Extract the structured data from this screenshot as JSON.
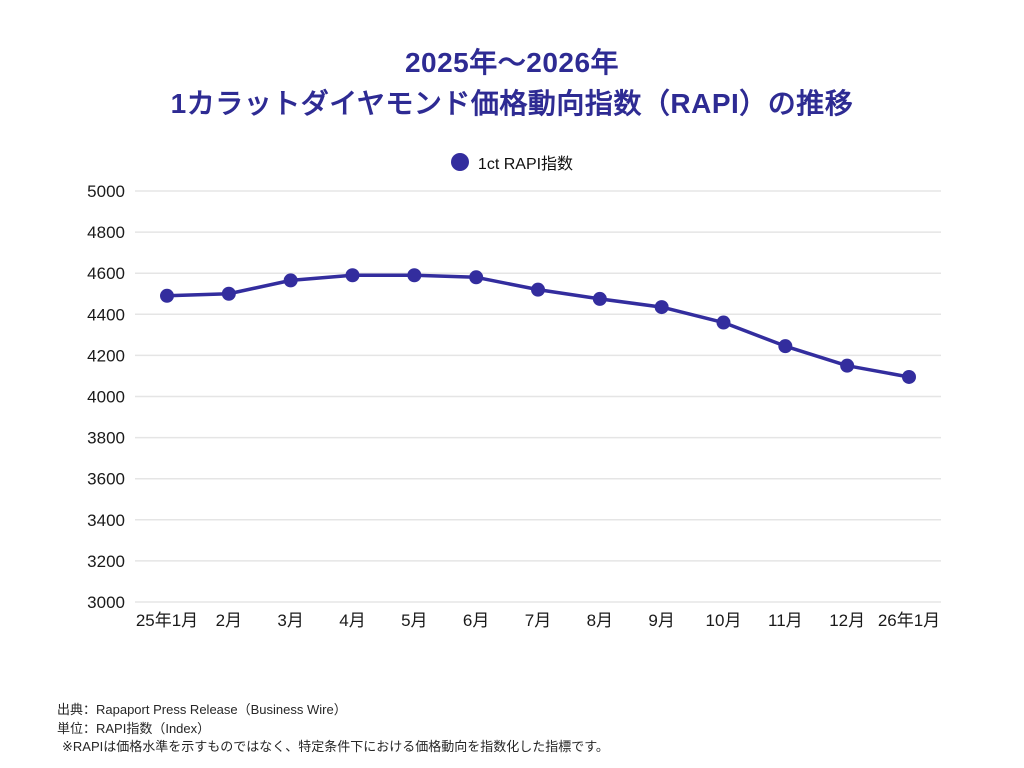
{
  "title": {
    "line1": "2025年〜2026年",
    "line2": "1カラットダイヤモンド価格動向指数（RAPI）の推移"
  },
  "legend": {
    "label": "1ct RAPI指数"
  },
  "chart_data": {
    "type": "line",
    "title": "2025年〜2026年 1カラットダイヤモンド価格動向指数（RAPI）の推移",
    "categories": [
      "25年1月",
      "2月",
      "3月",
      "4月",
      "5月",
      "6月",
      "7月",
      "8月",
      "9月",
      "10月",
      "11月",
      "12月",
      "26年1月"
    ],
    "series": [
      {
        "name": "1ct RAPI指数",
        "values": [
          4490,
          4500,
          4565,
          4590,
          4590,
          4580,
          4520,
          4475,
          4435,
          4360,
          4245,
          4150,
          4095
        ]
      }
    ],
    "xlabel": "",
    "ylabel": "RAPI指数（Index）",
    "ylim": [
      3000,
      5000
    ],
    "ytick_step": 200,
    "grid": true,
    "legend_position": "top"
  },
  "footnotes": [
    "出典：Rapaport Press Release（Business Wire）",
    "単位：RAPI指数（Index）",
    "※RAPIは価格水準を示すものではなく、特定条件下における価格動向を指数化した指標です。"
  ],
  "colors": {
    "accent": "#332d9e",
    "title": "#2e2b93",
    "grid": "#e5e5e5",
    "axis_text": "#1a1a1a",
    "footnote_text": "#262626"
  }
}
